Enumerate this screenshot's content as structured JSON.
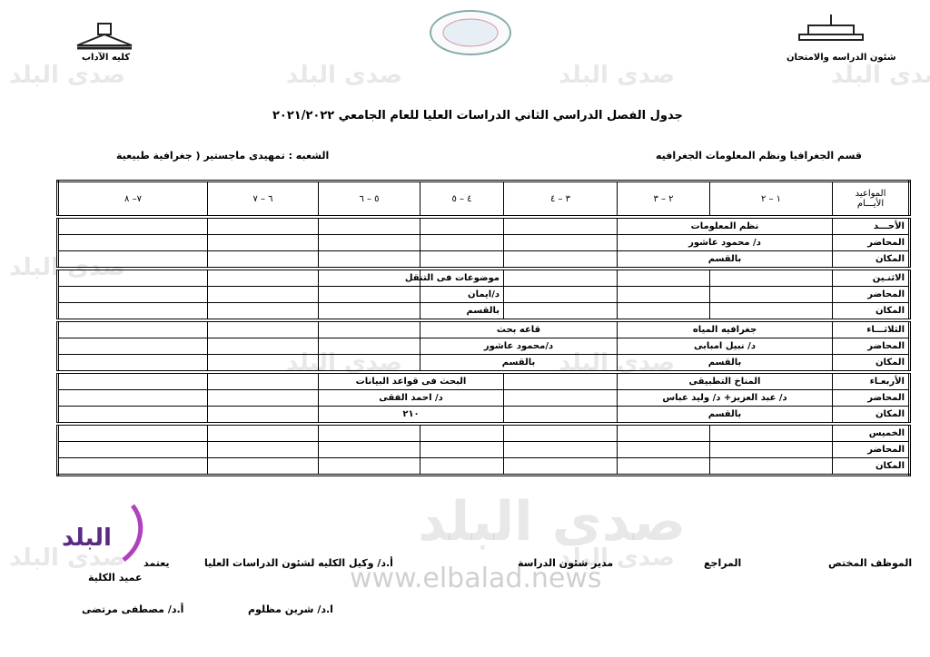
{
  "header": {
    "faculty": "كليه الآداب",
    "office": "شئون الدراسه والامتحان",
    "title": "جدول  الفصل الدراسي الثاني الدراسات العليا  للعام الجامعي ٢٠٢١/٢٠٢٢",
    "department": "قسم  الجغرافيا ونظم المعلومات الجغرافيه",
    "division": "الشعبه : تمهيدى ماجستير ( جغرافية طبيعية"
  },
  "table": {
    "corner": [
      "المواعيد",
      "الأيـــام"
    ],
    "columns": [
      "١ – ٢",
      "٢ – ٣",
      "٣ – ٤",
      "٤ – ٥",
      "٥ – ٦",
      "٦ – ٧",
      "٧– ٨"
    ],
    "days": [
      {
        "labels": [
          "الأحـــد",
          "المحاضر",
          "المكان"
        ],
        "cells": [
          [
            "نظم المعلومات"
          ],
          [
            "د/ محمود عاشور"
          ],
          [
            "بالقسم"
          ]
        ]
      },
      {
        "labels": [
          "الاثنـين",
          "المحاضر",
          "المكان"
        ],
        "cells": [
          [
            "موضوعات فى التنقل"
          ],
          [
            "د/ايمان"
          ],
          [
            "بالقسم"
          ]
        ]
      },
      {
        "labels": [
          "الثلاثـــاء",
          "المحاضر",
          "المكان"
        ],
        "cells": [
          [
            "جغرافيه المياه",
            "قاعه بحث"
          ],
          [
            "د/ نبيل امبابى",
            "د/محمود عاشور"
          ],
          [
            "بالقسم",
            "بالقسم"
          ]
        ]
      },
      {
        "labels": [
          "الأربعـاء",
          "المحاضر",
          "المكان"
        ],
        "cells": [
          [
            "المناخ التطبيقى",
            "البحث فى قواعد البيانات"
          ],
          [
            "د/ عبد العزيز+ د/ وليد عباس",
            "د/ احمد الفقى"
          ],
          [
            "بالقسم",
            "٢١٠"
          ]
        ]
      },
      {
        "labels": [
          "الخميس",
          "المحاضر",
          "المكان"
        ],
        "cells": [
          [],
          [],
          []
        ]
      }
    ]
  },
  "footer": {
    "employee": "الموظف المختص",
    "reviewer": "المراجع",
    "manager": "مدير شئون الدراسة",
    "vice_dean": "أ.د/ وكيل الكليه لشئون الدراسات العليا",
    "approve": "يعتمد",
    "dean": "عميد الكلية",
    "vice_dean_name": "ا.د/ شرين مظلوم",
    "dean_name": "أ.د/ مصطفى مرتضى"
  },
  "watermark": {
    "text": "صدى البلد",
    "url": "www.elbalad.news",
    "logo": "البلد"
  }
}
